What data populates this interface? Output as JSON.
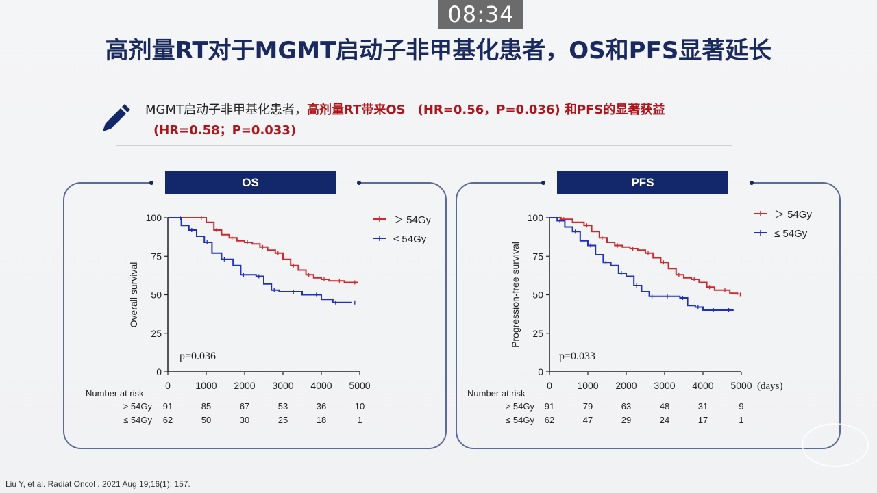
{
  "timer": "08:34",
  "title": "高剂量RT对于MGMT启动子非甲基化患者，OS和PFS显著延长",
  "note": {
    "part1": "MGMT启动子非甲基化患者，",
    "part2": "高剂量RT带来OS　(HR=0.56，P=0.036) 和PFS的显著获益",
    "line2": "(HR=0.58；P=0.033)"
  },
  "citation": "Liu Y, et al. Radiat Oncol . 2021 Aug 19;16(1): 157.",
  "colors": {
    "high": "#d3262b",
    "low": "#1f2fc4",
    "accent": "#13286a"
  },
  "chart_data": [
    {
      "type": "line",
      "title": "OS",
      "ylabel": "Overall survival",
      "xlabel": "",
      "xlim": [
        0,
        5000
      ],
      "ylim": [
        0,
        100
      ],
      "xticks": [
        "0",
        "1000",
        "2000",
        "3000",
        "4000",
        "5000"
      ],
      "yticks": [
        "0",
        "25",
        "50",
        "75",
        "100"
      ],
      "pvalue": "p=0.036",
      "risk_title": "Number at risk",
      "series": [
        {
          "name": "> 54Gy",
          "legend": "＞ 54Gy",
          "risk_label": "> 54Gy",
          "risk": [
            "91",
            "85",
            "67",
            "53",
            "36",
            "10"
          ],
          "points": [
            [
              0,
              100
            ],
            [
              800,
              100
            ],
            [
              1000,
              97
            ],
            [
              1200,
              92
            ],
            [
              1400,
              89
            ],
            [
              1600,
              87
            ],
            [
              1800,
              85
            ],
            [
              2000,
              84
            ],
            [
              2200,
              83
            ],
            [
              2400,
              81
            ],
            [
              2600,
              79
            ],
            [
              2800,
              77
            ],
            [
              3000,
              73
            ],
            [
              3200,
              69
            ],
            [
              3400,
              66
            ],
            [
              3600,
              63
            ],
            [
              3800,
              61
            ],
            [
              4000,
              60
            ],
            [
              4200,
              59
            ],
            [
              4400,
              59
            ],
            [
              4600,
              58
            ],
            [
              4800,
              58
            ],
            [
              4950,
              58
            ]
          ]
        },
        {
          "name": "≤ 54Gy",
          "legend": "≤ 54Gy",
          "risk_label": "≤ 54Gy",
          "risk": [
            "62",
            "50",
            "30",
            "25",
            "18",
            "1"
          ],
          "points": [
            [
              0,
              100
            ],
            [
              250,
              100
            ],
            [
              350,
              95
            ],
            [
              550,
              92
            ],
            [
              750,
              88
            ],
            [
              950,
              84
            ],
            [
              1150,
              77
            ],
            [
              1400,
              73
            ],
            [
              1700,
              69
            ],
            [
              1900,
              63
            ],
            [
              2100,
              63
            ],
            [
              2300,
              62
            ],
            [
              2500,
              57
            ],
            [
              2700,
              53
            ],
            [
              2900,
              52
            ],
            [
              3200,
              52
            ],
            [
              3500,
              50
            ],
            [
              3800,
              50
            ],
            [
              4000,
              47
            ],
            [
              4300,
              45
            ],
            [
              4600,
              45
            ],
            [
              4800,
              45
            ]
          ]
        }
      ]
    },
    {
      "type": "line",
      "title": "PFS",
      "ylabel": "Progression-free survival",
      "xlabel": "(days)",
      "xlim": [
        0,
        5000
      ],
      "ylim": [
        0,
        100
      ],
      "xticks": [
        "0",
        "1000",
        "2000",
        "3000",
        "4000",
        "5000"
      ],
      "yticks": [
        "0",
        "25",
        "50",
        "75",
        "100"
      ],
      "pvalue": "p=0.033",
      "risk_title": "Number at risk",
      "series": [
        {
          "name": "> 54Gy",
          "legend": "＞ 54Gy",
          "risk_label": "> 54Gy",
          "risk": [
            "91",
            "79",
            "63",
            "48",
            "31",
            "9"
          ],
          "points": [
            [
              0,
              100
            ],
            [
              300,
              99
            ],
            [
              600,
              97
            ],
            [
              900,
              95
            ],
            [
              1100,
              91
            ],
            [
              1300,
              87
            ],
            [
              1500,
              84
            ],
            [
              1700,
              82
            ],
            [
              1900,
              81
            ],
            [
              2100,
              80
            ],
            [
              2300,
              79
            ],
            [
              2500,
              77
            ],
            [
              2700,
              74
            ],
            [
              2900,
              71
            ],
            [
              3100,
              67
            ],
            [
              3300,
              63
            ],
            [
              3500,
              61
            ],
            [
              3700,
              60
            ],
            [
              3900,
              58
            ],
            [
              4100,
              55
            ],
            [
              4300,
              53
            ],
            [
              4500,
              53
            ],
            [
              4700,
              51
            ],
            [
              4900,
              50
            ]
          ]
        },
        {
          "name": "≤ 54Gy",
          "legend": "≤ 54Gy",
          "risk_label": "≤ 54Gy",
          "risk": [
            "62",
            "47",
            "29",
            "24",
            "17",
            "1"
          ],
          "points": [
            [
              0,
              100
            ],
            [
              200,
              98
            ],
            [
              400,
              94
            ],
            [
              600,
              91
            ],
            [
              800,
              85
            ],
            [
              1000,
              82
            ],
            [
              1200,
              76
            ],
            [
              1400,
              71
            ],
            [
              1600,
              69
            ],
            [
              1800,
              64
            ],
            [
              2000,
              62
            ],
            [
              2200,
              56
            ],
            [
              2400,
              52
            ],
            [
              2600,
              49
            ],
            [
              2800,
              49
            ],
            [
              3000,
              49
            ],
            [
              3200,
              49
            ],
            [
              3400,
              48
            ],
            [
              3600,
              43
            ],
            [
              3800,
              42
            ],
            [
              4000,
              40
            ],
            [
              4200,
              40
            ],
            [
              4400,
              40
            ],
            [
              4600,
              40
            ],
            [
              4800,
              40
            ]
          ]
        }
      ]
    }
  ]
}
